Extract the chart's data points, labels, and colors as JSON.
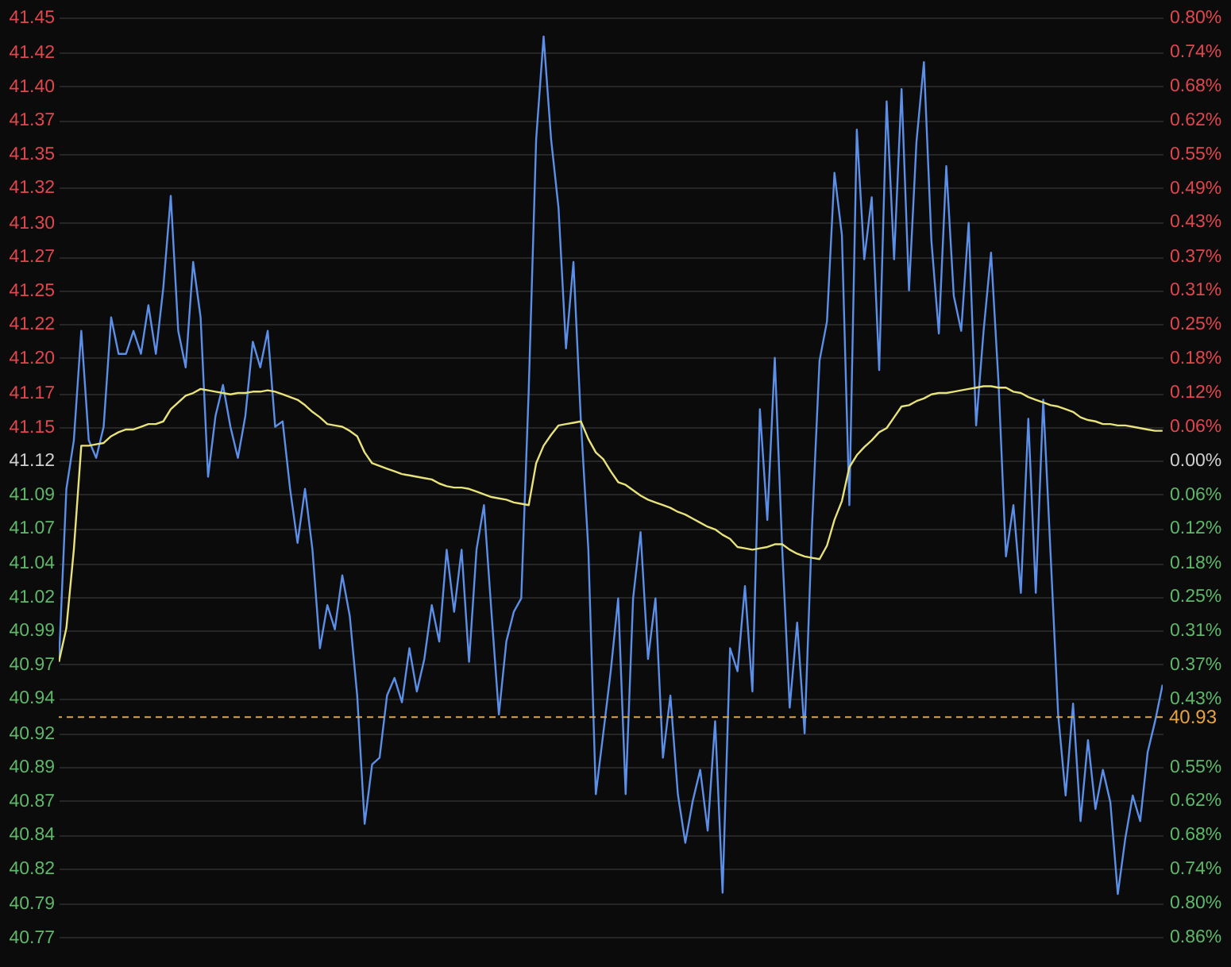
{
  "chart_data": {
    "type": "line",
    "categories": [
      null,
      null,
      null,
      null,
      null,
      null,
      null,
      null,
      null,
      null,
      null,
      null,
      null,
      null,
      null,
      null,
      null,
      null,
      null,
      null,
      null,
      null,
      null,
      null,
      null,
      null,
      null,
      null,
      null,
      null,
      null,
      null,
      null,
      null,
      null,
      null,
      null,
      null,
      null,
      null,
      null,
      null,
      null,
      null,
      null,
      null,
      null,
      null,
      null,
      null,
      null,
      null,
      null,
      null,
      null,
      null,
      null,
      null,
      null,
      null,
      null,
      null,
      null,
      null,
      null,
      null,
      null,
      null,
      null,
      null,
      null,
      null,
      null,
      null,
      null,
      null,
      null,
      null,
      null,
      null,
      null,
      null,
      null,
      null,
      null,
      null,
      null,
      null,
      null,
      null,
      null,
      null,
      null,
      null,
      null,
      null,
      null,
      null,
      null,
      null,
      null,
      null,
      null,
      null,
      null,
      null,
      null,
      null,
      null,
      null,
      null,
      null,
      null,
      null,
      null,
      null,
      null,
      null,
      null,
      null,
      null,
      null,
      null,
      null,
      null,
      null,
      null,
      null,
      null,
      null,
      null,
      null,
      null,
      null,
      null,
      null,
      null,
      null,
      null,
      null,
      null,
      null,
      null,
      null,
      null,
      null,
      null,
      null,
      null
    ],
    "ylim": [
      40.745,
      41.461
    ],
    "yticks": [
      {
        "value": 41.448,
        "label": "41.45"
      },
      {
        "value": 41.422,
        "label": "41.42"
      },
      {
        "value": 41.397,
        "label": "41.40"
      },
      {
        "value": 41.372,
        "label": "41.37"
      },
      {
        "value": 41.347,
        "label": "41.35"
      },
      {
        "value": 41.322,
        "label": "41.32"
      },
      {
        "value": 41.296,
        "label": "41.30"
      },
      {
        "value": 41.271,
        "label": "41.27"
      },
      {
        "value": 41.246,
        "label": "41.25"
      },
      {
        "value": 41.221,
        "label": "41.22"
      },
      {
        "value": 41.196,
        "label": "41.20"
      },
      {
        "value": 41.17,
        "label": "41.17"
      },
      {
        "value": 41.145,
        "label": "41.15"
      },
      {
        "value": 41.12,
        "label": "41.12"
      },
      {
        "value": 41.095,
        "label": "41.09"
      },
      {
        "value": 41.07,
        "label": "41.07"
      },
      {
        "value": 41.044,
        "label": "41.04"
      },
      {
        "value": 41.019,
        "label": "41.02"
      },
      {
        "value": 40.994,
        "label": "40.99"
      },
      {
        "value": 40.969,
        "label": "40.97"
      },
      {
        "value": 40.944,
        "label": "40.94"
      },
      {
        "value": 40.918,
        "label": "40.92"
      },
      {
        "value": 40.893,
        "label": "40.89"
      },
      {
        "value": 40.868,
        "label": "40.87"
      },
      {
        "value": 40.843,
        "label": "40.84"
      },
      {
        "value": 40.818,
        "label": "40.82"
      },
      {
        "value": 40.792,
        "label": "40.79"
      },
      {
        "value": 40.767,
        "label": "40.77"
      }
    ],
    "y2lim": [
      -0.916,
      0.832
    ],
    "y2ticks": [
      {
        "value": 0.8,
        "label": "0.80%"
      },
      {
        "value": 0.738,
        "label": "0.74%"
      },
      {
        "value": 0.677,
        "label": "0.68%"
      },
      {
        "value": 0.615,
        "label": "0.62%"
      },
      {
        "value": 0.554,
        "label": "0.55%"
      },
      {
        "value": 0.492,
        "label": "0.49%"
      },
      {
        "value": 0.431,
        "label": "0.43%"
      },
      {
        "value": 0.369,
        "label": "0.37%"
      },
      {
        "value": 0.308,
        "label": "0.31%"
      },
      {
        "value": 0.246,
        "label": "0.25%"
      },
      {
        "value": 0.185,
        "label": "0.18%"
      },
      {
        "value": 0.123,
        "label": "0.12%"
      },
      {
        "value": 0.062,
        "label": "0.06%"
      },
      {
        "value": 0,
        "label": "0.00%"
      },
      {
        "value": -0.062,
        "label": "0.06%"
      },
      {
        "value": -0.123,
        "label": "0.12%"
      },
      {
        "value": -0.185,
        "label": "0.18%"
      },
      {
        "value": -0.246,
        "label": "0.25%"
      },
      {
        "value": -0.308,
        "label": "0.31%"
      },
      {
        "value": -0.369,
        "label": "0.37%"
      },
      {
        "value": -0.431,
        "label": "0.43%"
      },
      {
        "value": -0.554,
        "label": "0.55%"
      },
      {
        "value": -0.615,
        "label": "0.62%"
      },
      {
        "value": -0.677,
        "label": "0.68%"
      },
      {
        "value": -0.738,
        "label": "0.74%"
      },
      {
        "value": -0.8,
        "label": "0.80%"
      },
      {
        "value": -0.861,
        "label": "0.86%"
      }
    ],
    "tick_labels": "y",
    "grid": "y",
    "ref_lines": [
      {
        "axis": "y",
        "value": 40.93,
        "label": "40.93",
        "color": "#e8a33c",
        "line_style": "dashed"
      }
    ],
    "series": [
      {
        "color": "#5b8fe8",
        "values": [
          40.971,
          41.099,
          41.135,
          41.216,
          41.135,
          41.122,
          41.145,
          41.226,
          41.199,
          41.199,
          41.216,
          41.199,
          41.235,
          41.199,
          41.248,
          41.316,
          41.216,
          41.189,
          41.267,
          41.226,
          41.108,
          41.153,
          41.176,
          41.145,
          41.122,
          41.153,
          41.208,
          41.189,
          41.216,
          41.145,
          41.149,
          41.099,
          41.059,
          41.099,
          41.054,
          40.981,
          41.013,
          40.995,
          41.035,
          41.005,
          40.946,
          40.851,
          40.895,
          40.9,
          40.946,
          40.959,
          40.941,
          40.981,
          40.949,
          40.973,
          41.013,
          40.986,
          41.054,
          41.008,
          41.054,
          40.971,
          41.054,
          41.087,
          41.008,
          40.932,
          40.986,
          41.008,
          41.018,
          41.172,
          41.358,
          41.434,
          41.358,
          41.307,
          41.203,
          41.267,
          41.149,
          41.054,
          40.873,
          40.918,
          40.964,
          41.018,
          40.873,
          41.018,
          41.067,
          40.973,
          41.018,
          40.9,
          40.946,
          40.873,
          40.837,
          40.868,
          40.891,
          40.846,
          40.927,
          40.8,
          40.981,
          40.964,
          41.027,
          40.949,
          41.158,
          41.076,
          41.196,
          41.054,
          40.937,
          41.0,
          40.918,
          41.072,
          41.194,
          41.223,
          41.333,
          41.287,
          41.087,
          41.365,
          41.269,
          41.315,
          41.187,
          41.386,
          41.269,
          41.395,
          41.246,
          41.356,
          41.415,
          41.283,
          41.214,
          41.338,
          41.242,
          41.216,
          41.296,
          41.146,
          41.216,
          41.274,
          41.178,
          41.049,
          41.087,
          41.022,
          41.151,
          41.022,
          41.165,
          41.049,
          40.932,
          40.872,
          40.94,
          40.853,
          40.913,
          40.862,
          40.891,
          40.867,
          40.799,
          40.84,
          40.872,
          40.853,
          40.904,
          40.927,
          40.954
        ]
      },
      {
        "color": "#e8e27a",
        "values": [
          40.971,
          40.996,
          41.054,
          41.131,
          41.131,
          41.132,
          41.133,
          41.138,
          41.141,
          41.143,
          41.143,
          41.145,
          41.147,
          41.147,
          41.149,
          41.158,
          41.163,
          41.168,
          41.17,
          41.173,
          41.172,
          41.171,
          41.17,
          41.169,
          41.17,
          41.17,
          41.171,
          41.171,
          41.172,
          41.171,
          41.169,
          41.167,
          41.165,
          41.161,
          41.156,
          41.152,
          41.147,
          41.146,
          41.145,
          41.142,
          41.138,
          41.126,
          41.118,
          41.116,
          41.114,
          41.112,
          41.11,
          41.109,
          41.108,
          41.107,
          41.106,
          41.103,
          41.101,
          41.1,
          41.1,
          41.099,
          41.097,
          41.095,
          41.093,
          41.092,
          41.091,
          41.089,
          41.088,
          41.087,
          41.118,
          41.131,
          41.139,
          41.146,
          41.147,
          41.148,
          41.149,
          41.136,
          41.126,
          41.121,
          41.112,
          41.104,
          41.102,
          41.098,
          41.094,
          41.091,
          41.089,
          41.087,
          41.085,
          41.082,
          41.08,
          41.077,
          41.074,
          41.071,
          41.069,
          41.065,
          41.062,
          41.056,
          41.055,
          41.054,
          41.055,
          41.056,
          41.058,
          41.058,
          41.054,
          41.051,
          41.049,
          41.048,
          41.047,
          41.057,
          41.076,
          41.09,
          41.115,
          41.124,
          41.13,
          41.135,
          41.141,
          41.144,
          41.152,
          41.16,
          41.161,
          41.164,
          41.166,
          41.169,
          41.17,
          41.17,
          41.171,
          41.172,
          41.173,
          41.174,
          41.175,
          41.175,
          41.174,
          41.174,
          41.171,
          41.17,
          41.167,
          41.165,
          41.163,
          41.161,
          41.16,
          41.158,
          41.156,
          41.152,
          41.15,
          41.149,
          41.147,
          41.147,
          41.146,
          41.146,
          41.145,
          41.144,
          41.143,
          41.142,
          41.142
        ]
      }
    ]
  }
}
